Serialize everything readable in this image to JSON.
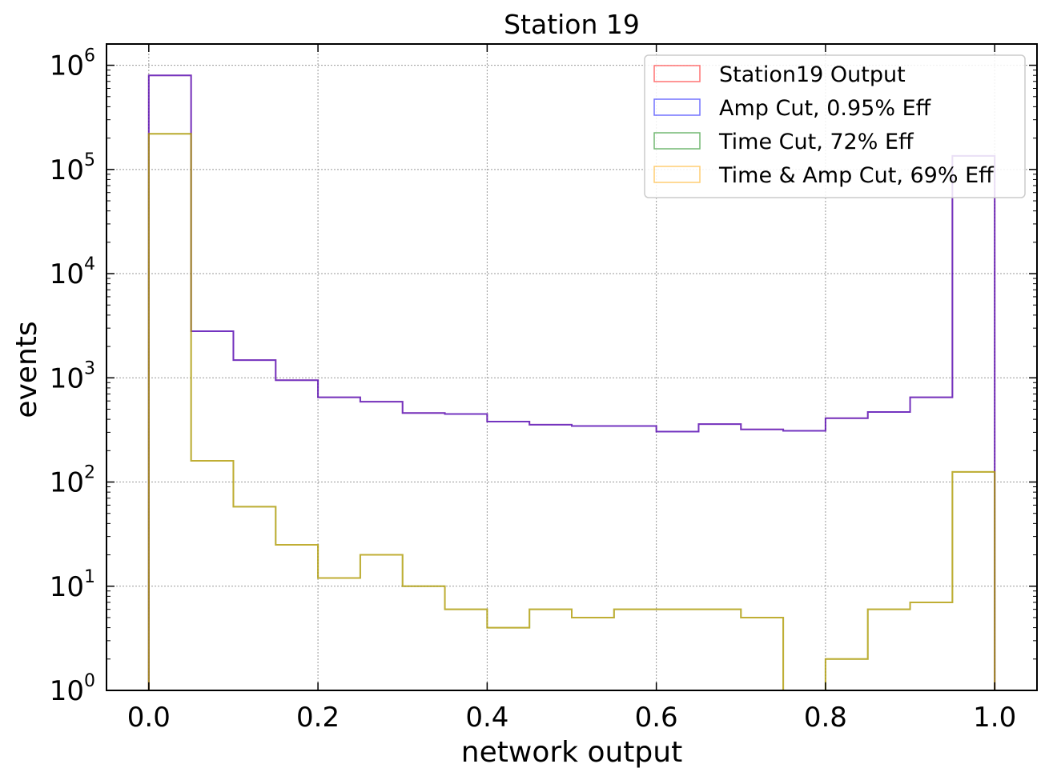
{
  "chart_data": {
    "type": "histogram",
    "title": "Station 19",
    "xlabel": "network output",
    "ylabel": "events",
    "xlim": [
      -0.05,
      1.05
    ],
    "ylim": [
      1,
      1600000
    ],
    "yscale": "log",
    "grid": true,
    "legend_position": "top-right",
    "bin_edges": [
      0.0,
      0.05,
      0.1,
      0.15,
      0.2,
      0.25,
      0.3,
      0.35,
      0.4,
      0.45,
      0.5,
      0.55,
      0.6,
      0.65,
      0.7,
      0.75,
      0.8,
      0.85,
      0.9,
      0.95,
      1.0
    ],
    "x_ticks": [
      {
        "value": 0.0,
        "label": "0.0"
      },
      {
        "value": 0.2,
        "label": "0.2"
      },
      {
        "value": 0.4,
        "label": "0.4"
      },
      {
        "value": 0.6,
        "label": "0.6"
      },
      {
        "value": 0.8,
        "label": "0.8"
      },
      {
        "value": 1.0,
        "label": "1.0"
      }
    ],
    "y_ticks": [
      {
        "value": 1,
        "base": "10",
        "exp": "0"
      },
      {
        "value": 10,
        "base": "10",
        "exp": "1"
      },
      {
        "value": 100,
        "base": "10",
        "exp": "2"
      },
      {
        "value": 1000,
        "base": "10",
        "exp": "3"
      },
      {
        "value": 10000,
        "base": "10",
        "exp": "4"
      },
      {
        "value": 100000,
        "base": "10",
        "exp": "5"
      },
      {
        "value": 1000000,
        "base": "10",
        "exp": "6"
      }
    ],
    "series": [
      {
        "name": "Station19 Output",
        "color": "#ff0000",
        "values": [
          800000,
          2800,
          1480,
          950,
          650,
          590,
          460,
          450,
          380,
          355,
          345,
          345,
          305,
          360,
          320,
          310,
          410,
          470,
          650,
          135000
        ]
      },
      {
        "name": "Amp Cut, 0.95% Eff",
        "color": "#0000ff",
        "values": [
          800000,
          2800,
          1480,
          950,
          650,
          590,
          460,
          450,
          380,
          355,
          345,
          345,
          305,
          360,
          320,
          310,
          410,
          470,
          650,
          135000
        ]
      },
      {
        "name": "Time Cut, 72% Eff",
        "color": "#008000",
        "values": [
          220000,
          160,
          58,
          25,
          12,
          20,
          10,
          6,
          4,
          6,
          5,
          6,
          6,
          6,
          5,
          0,
          2,
          6,
          7,
          125
        ]
      },
      {
        "name": "Time & Amp Cut, 69% Eff",
        "color": "#ffa500",
        "values": [
          220000,
          160,
          58,
          25,
          12,
          20,
          10,
          6,
          4,
          6,
          5,
          6,
          6,
          6,
          5,
          0,
          2,
          6,
          7,
          125
        ]
      }
    ]
  }
}
